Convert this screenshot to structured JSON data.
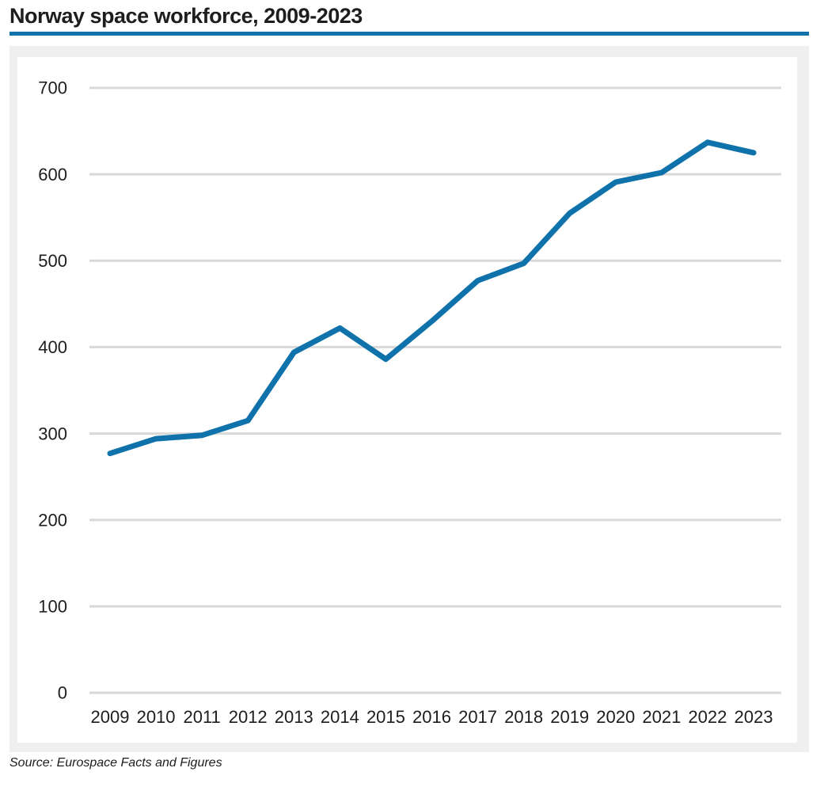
{
  "title": "Norway space workforce, 2009-2023",
  "source": "Source: Eurospace Facts and Figures",
  "colors": {
    "accent_blue": "#1072ab",
    "panel_gray": "#efefef",
    "gridline_gray": "#d9d9d9",
    "text_dark": "#1d1d1b"
  },
  "chart_data": {
    "type": "line",
    "title": "Norway space workforce, 2009-2023",
    "x": [
      2009,
      2010,
      2011,
      2012,
      2013,
      2014,
      2015,
      2016,
      2017,
      2018,
      2019,
      2020,
      2021,
      2022,
      2023
    ],
    "series": [
      {
        "name": "Norway space workforce",
        "values": [
          277,
          294,
          298,
          315,
          394,
          422,
          386,
          430,
          477,
          497,
          555,
          591,
          602,
          637,
          625
        ]
      }
    ],
    "xlabel": "",
    "ylabel": "",
    "ylim": [
      0,
      700
    ],
    "yticks": [
      0,
      100,
      200,
      300,
      400,
      500,
      600,
      700
    ],
    "grid": true,
    "legend_position": "none",
    "line_width": 7
  }
}
